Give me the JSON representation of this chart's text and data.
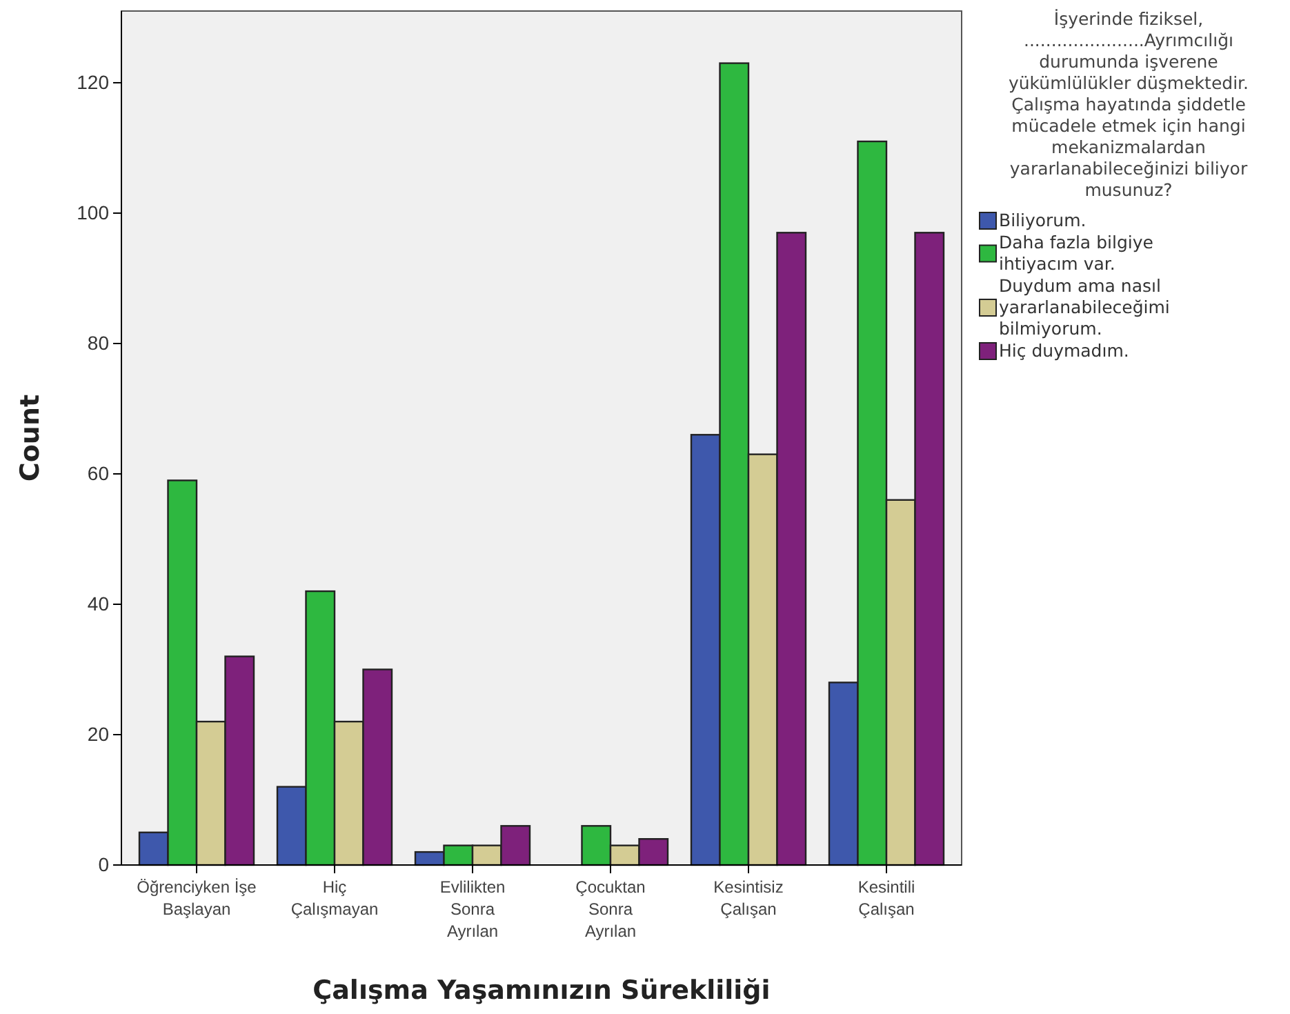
{
  "chart_data": {
    "type": "bar",
    "xlabel": "Çalışma Yaşamınızın Sürekliliği",
    "ylabel": "Count",
    "categories": [
      "Öğrenciyken İşe\nBaşlayan",
      "Hiç\nÇalışmayan",
      "Evlilikten\nSonra\nAyrılan",
      "Çocuktan\nSonra\nAyrılan",
      "Kesintisiz\nÇalışan",
      "Kesintili\nÇalışan"
    ],
    "legend_title": "İşyerinde fiziksel, ......................Ayrımcılığı durumunda işverene yükümlülükler düşmektedir. Çalışma hayatında şiddetle mücadele etmek için hangi mekanizmalardan yararlanabileceğinizi biliyor musunuz?",
    "series": [
      {
        "name": "Biliyorum.",
        "color": "#3e58ac",
        "values": [
          5,
          12,
          2,
          0,
          66,
          28
        ]
      },
      {
        "name": "Daha fazla bilgiye ihtiyacım var.",
        "color": "#2eb840",
        "values": [
          59,
          42,
          3,
          6,
          123,
          111
        ]
      },
      {
        "name": "Duydum ama nasıl yararlanabileceğimi bilmiyorum.",
        "color": "#d4cc94",
        "values": [
          22,
          22,
          3,
          3,
          63,
          56
        ]
      },
      {
        "name": "Hiç duymadım.",
        "color": "#7e217b",
        "values": [
          32,
          30,
          6,
          4,
          97,
          97
        ]
      }
    ],
    "ylim": [
      0,
      131
    ],
    "yticks": [
      0,
      20,
      40,
      60,
      80,
      100,
      120
    ],
    "legend": "right"
  }
}
